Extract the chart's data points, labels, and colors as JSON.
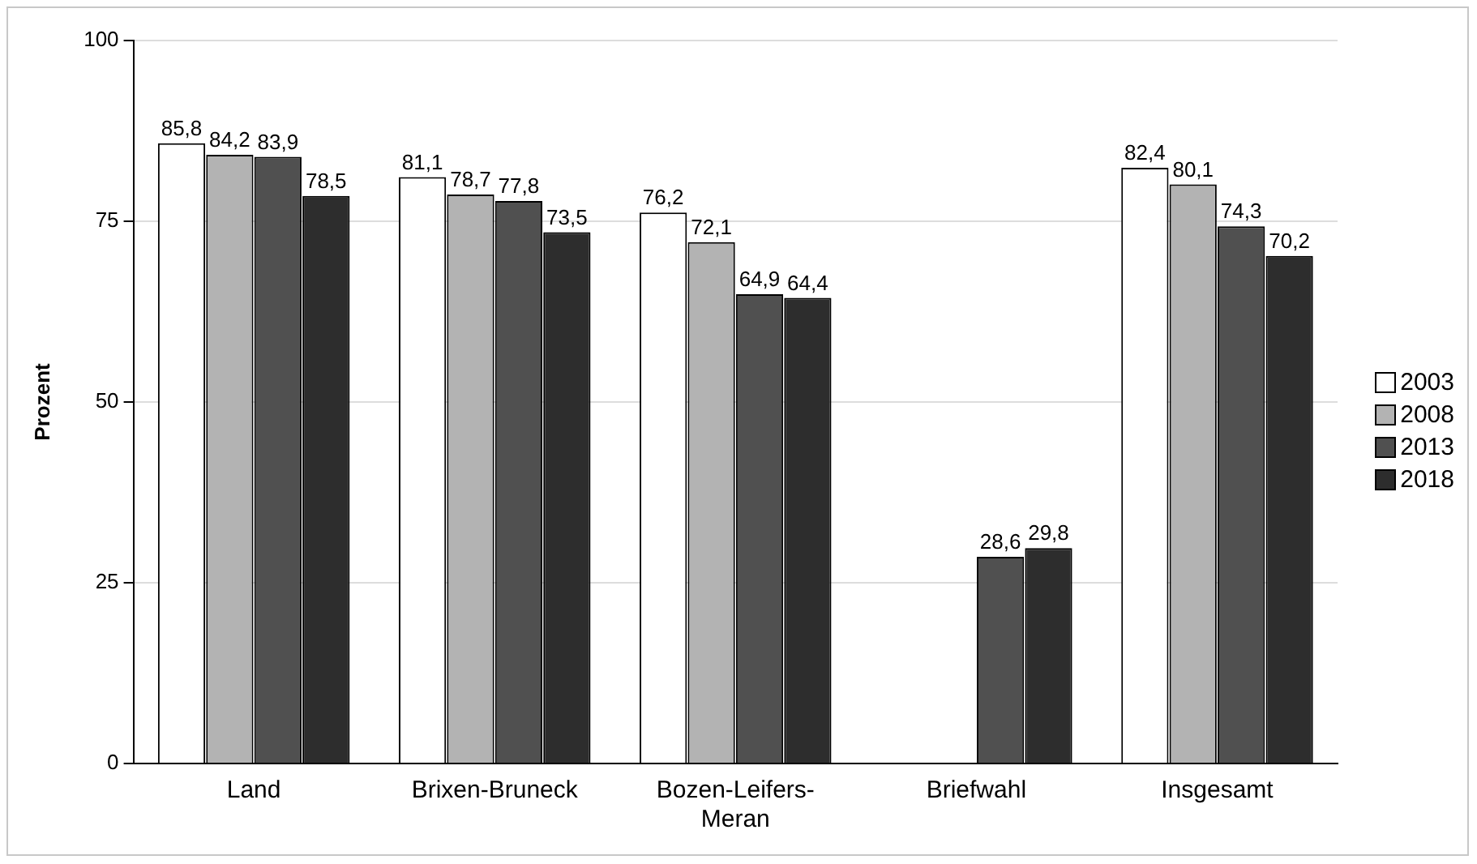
{
  "chart_data": {
    "type": "bar",
    "ylabel": "Prozent",
    "categories": [
      "Land",
      "Brixen-Bruneck",
      "Bozen-Leifers-Meran",
      "Briefwahl",
      "Insgesamt"
    ],
    "series": [
      {
        "name": "2003",
        "color": "#ffffff",
        "values": [
          85.8,
          81.1,
          76.2,
          null,
          82.4
        ],
        "value_labels": [
          "85,8",
          "81,1",
          "76,2",
          null,
          "82,4"
        ]
      },
      {
        "name": "2008",
        "color": "#b3b3b3",
        "values": [
          84.2,
          78.7,
          72.1,
          null,
          80.1
        ],
        "value_labels": [
          "84,2",
          "78,7",
          "72,1",
          null,
          "80,1"
        ]
      },
      {
        "name": "2013",
        "color": "#505050",
        "values": [
          83.9,
          77.8,
          64.9,
          28.6,
          74.3
        ],
        "value_labels": [
          "83,9",
          "77,8",
          "64,9",
          "28,6",
          "74,3"
        ]
      },
      {
        "name": "2018",
        "color": "#2d2d2d",
        "values": [
          78.5,
          73.5,
          64.4,
          29.8,
          70.2
        ],
        "value_labels": [
          "78,5",
          "73,5",
          "64,4",
          "29,8",
          "70,2"
        ]
      }
    ],
    "ylim": [
      0,
      100
    ],
    "yticks": [
      0,
      25,
      50,
      75,
      100
    ],
    "grid": "y",
    "legend": "right"
  }
}
